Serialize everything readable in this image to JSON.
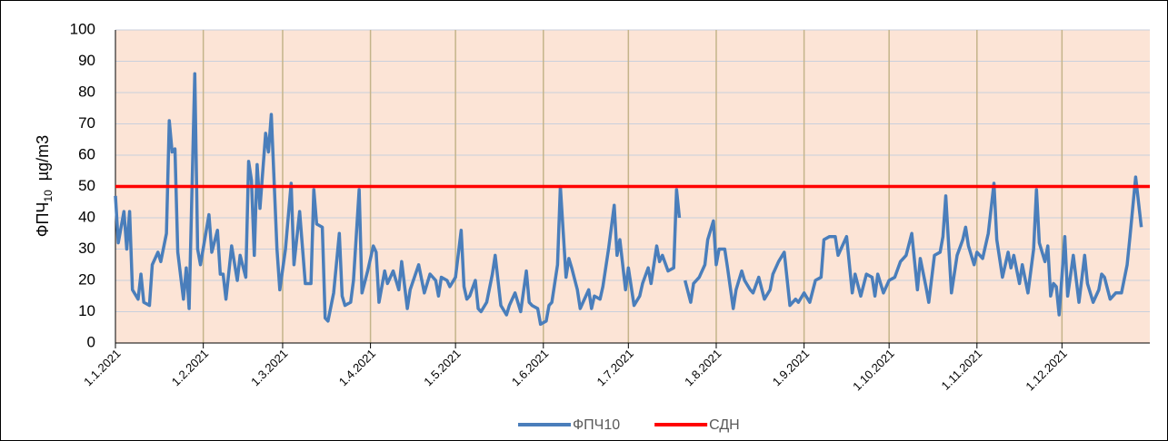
{
  "chart_data": {
    "type": "line",
    "ylabel": {
      "name": "ФПЧ",
      "sub": "10",
      "unit": "µg/m3"
    },
    "x": [
      "1.1.2021",
      "2.1.2021",
      "4.1.2021",
      "5.1.2021",
      "6.1.2021",
      "7.1.2021",
      "9.1.2021",
      "10.1.2021",
      "11.1.2021",
      "13.1.2021",
      "14.1.2021",
      "16.1.2021",
      "17.1.2021",
      "19.1.2021",
      "20.1.2021",
      "21.1.2021",
      "22.1.2021",
      "23.1.2021",
      "25.1.2021",
      "26.1.2021",
      "27.1.2021",
      "29.1.2021",
      "30.1.2021",
      "31.1.2021",
      "3.2.2021",
      "4.2.2021",
      "6.2.2021",
      "7.2.2021",
      "8.2.2021",
      "9.2.2021",
      "11.2.2021",
      "13.2.2021",
      "14.2.2021",
      "16.2.2021",
      "17.2.2021",
      "18.2.2021",
      "19.2.2021",
      "20.2.2021",
      "21.2.2021",
      "23.2.2021",
      "24.2.2021",
      "25.2.2021",
      "27.2.2021",
      "28.2.2021",
      "2.3.2021",
      "4.3.2021",
      "5.3.2021",
      "7.3.2021",
      "9.3.2021",
      "11.3.2021",
      "12.3.2021",
      "13.3.2021",
      "15.3.2021",
      "16.3.2021",
      "17.3.2021",
      "19.3.2021",
      "21.3.2021",
      "22.3.2021",
      "23.3.2021",
      "25.3.2021",
      "26.3.2021",
      "28.3.2021",
      "29.3.2021",
      "31.3.2021",
      "2.4.2021",
      "3.4.2021",
      "4.4.2021",
      "6.4.2021",
      "7.4.2021",
      "9.4.2021",
      "11.4.2021",
      "12.4.2021",
      "14.4.2021",
      "15.4.2021",
      "18.4.2021",
      "20.4.2021",
      "22.4.2021",
      "24.4.2021",
      "25.4.2021",
      "26.4.2021",
      "28.4.2021",
      "29.4.2021",
      "1.5.2021",
      "3.5.2021",
      "4.5.2021",
      "5.5.2021",
      "6.5.2021",
      "8.5.2021",
      "9.5.2021",
      "10.5.2021",
      "12.5.2021",
      "14.5.2021",
      "15.5.2021",
      "17.5.2021",
      "19.5.2021",
      "20.5.2021",
      "22.5.2021",
      "24.5.2021",
      "26.5.2021",
      "27.5.2021",
      "28.5.2021",
      "30.5.2021",
      "31.5.2021",
      "2.6.2021",
      "3.6.2021",
      "4.6.2021",
      "6.6.2021",
      "7.6.2021",
      "9.6.2021",
      "10.6.2021",
      "11.6.2021",
      "13.6.2021",
      "14.6.2021",
      "15.6.2021",
      "17.6.2021",
      "18.6.2021",
      "19.6.2021",
      "21.6.2021",
      "22.6.2021",
      "24.6.2021",
      "26.6.2021",
      "27.6.2021",
      "28.6.2021",
      "30.6.2021",
      "1.7.2021",
      "3.7.2021",
      "5.7.2021",
      "6.7.2021",
      "8.7.2021",
      "9.7.2021",
      "11.7.2021",
      "12.7.2021",
      "13.7.2021",
      "15.7.2021",
      "17.7.2021",
      "18.7.2021",
      "19.7.2021",
      "20.7.2021",
      "21.7.2021",
      "23.7.2021",
      "24.7.2021",
      "26.7.2021",
      "28.7.2021",
      "29.7.2021",
      "31.7.2021",
      "1.8.2021",
      "2.8.2021",
      "4.8.2021",
      "5.8.2021",
      "7.8.2021",
      "8.8.2021",
      "10.8.2021",
      "11.8.2021",
      "13.8.2021",
      "14.8.2021",
      "16.8.2021",
      "18.8.2021",
      "20.8.2021",
      "21.8.2021",
      "23.8.2021",
      "25.8.2021",
      "27.8.2021",
      "29.8.2021",
      "30.8.2021",
      "1.9.2021",
      "3.9.2021",
      "5.9.2021",
      "7.9.2021",
      "8.9.2021",
      "10.9.2021",
      "12.9.2021",
      "13.9.2021",
      "16.9.2021",
      "18.9.2021",
      "19.9.2021",
      "21.9.2021",
      "23.9.2021",
      "25.9.2021",
      "26.9.2021",
      "27.9.2021",
      "29.9.2021",
      "1.10.2021",
      "3.10.2021",
      "5.10.2021",
      "7.10.2021",
      "9.10.2021",
      "11.10.2021",
      "12.10.2021",
      "14.10.2021",
      "15.10.2021",
      "17.10.2021",
      "19.10.2021",
      "20.10.2021",
      "21.10.2021",
      "23.10.2021",
      "25.10.2021",
      "27.10.2021",
      "28.10.2021",
      "29.10.2021",
      "31.10.2021",
      "1.11.2021",
      "3.11.2021",
      "4.11.2021",
      "5.11.2021",
      "7.11.2021",
      "8.11.2021",
      "10.11.2021",
      "12.11.2021",
      "13.11.2021",
      "14.11.2021",
      "16.11.2021",
      "17.11.2021",
      "19.11.2021",
      "21.11.2021",
      "22.11.2021",
      "23.11.2021",
      "25.11.2021",
      "26.11.2021",
      "27.11.2021",
      "28.11.2021",
      "29.11.2021",
      "30.11.2021",
      "2.12.2021",
      "3.12.2021",
      "5.12.2021",
      "7.12.2021",
      "9.12.2021",
      "10.12.2021",
      "12.12.2021",
      "14.12.2021",
      "15.12.2021",
      "16.12.2021",
      "18.12.2021",
      "20.12.2021",
      "22.12.2021",
      "24.12.2021",
      "25.12.2021",
      "27.12.2021",
      "29.12.2021"
    ],
    "series": [
      {
        "name": "ФПЧ10",
        "color": "#4a7ebb",
        "values": [
          47,
          32,
          42,
          30,
          42,
          17,
          14,
          22,
          13,
          12,
          25,
          29,
          26,
          35,
          71,
          61,
          62,
          29,
          14,
          24,
          11,
          86,
          30,
          25,
          41,
          29,
          36,
          22,
          22,
          14,
          31,
          20,
          28,
          21,
          58,
          52,
          28,
          57,
          43,
          67,
          61,
          73,
          30,
          17,
          30,
          51,
          25,
          42,
          19,
          19,
          49,
          38,
          37,
          8,
          7,
          16,
          35,
          15,
          12,
          13,
          20,
          49,
          16,
          23,
          31,
          29,
          13,
          23,
          19,
          23,
          17,
          26,
          11,
          17,
          25,
          16,
          22,
          20,
          15,
          21,
          20,
          18,
          21,
          36,
          18,
          14,
          15,
          20,
          11,
          10,
          13,
          22,
          28,
          12,
          9,
          12,
          16,
          10,
          23,
          13,
          12,
          11,
          6,
          7,
          12,
          13,
          25,
          50,
          21,
          27,
          24,
          17,
          11,
          13,
          17,
          11,
          15,
          14,
          18,
          30,
          44,
          28,
          33,
          17,
          24,
          12,
          15,
          19,
          24,
          19,
          31,
          26,
          28,
          23,
          24,
          49,
          40,
          null,
          20,
          13,
          19,
          21,
          25,
          33,
          39,
          25,
          30,
          30,
          24,
          11,
          17,
          23,
          20,
          17,
          16,
          21,
          14,
          17,
          22,
          26,
          29,
          12,
          14,
          13,
          16,
          13,
          20,
          21,
          33,
          34,
          34,
          28,
          34,
          16,
          22,
          15,
          22,
          21,
          15,
          22,
          16,
          20,
          21,
          26,
          28,
          35,
          17,
          27,
          18,
          13,
          28,
          29,
          34,
          47,
          16,
          28,
          33,
          37,
          31,
          25,
          29,
          27,
          31,
          35,
          51,
          33,
          21,
          29,
          24,
          28,
          19,
          25,
          16,
          30,
          49,
          32,
          26,
          31,
          15,
          19,
          18,
          9,
          34,
          15,
          28,
          13,
          28,
          19,
          13,
          17,
          22,
          21,
          14,
          16,
          16,
          25,
          34,
          53,
          37
        ]
      },
      {
        "name": "СДН",
        "color": "#ff0000",
        "value": 50
      }
    ],
    "xlim": [
      "1.1.2021",
      "1.1.2022"
    ],
    "xticks": [
      "1.1.2021",
      "1.2.2021",
      "1.3.2021",
      "1.4.2021",
      "1.5.2021",
      "1.6.2021",
      "1.7.2021",
      "1.8.2021",
      "1.9.2021",
      "1.10.2021",
      "1.11.2021",
      "1.12.2021"
    ],
    "ylim": [
      0,
      100
    ],
    "yticks": [
      0,
      10,
      20,
      30,
      40,
      50,
      60,
      70,
      80,
      90,
      100
    ],
    "grid": true,
    "legend": "bottom",
    "background": "#fce4d6"
  }
}
